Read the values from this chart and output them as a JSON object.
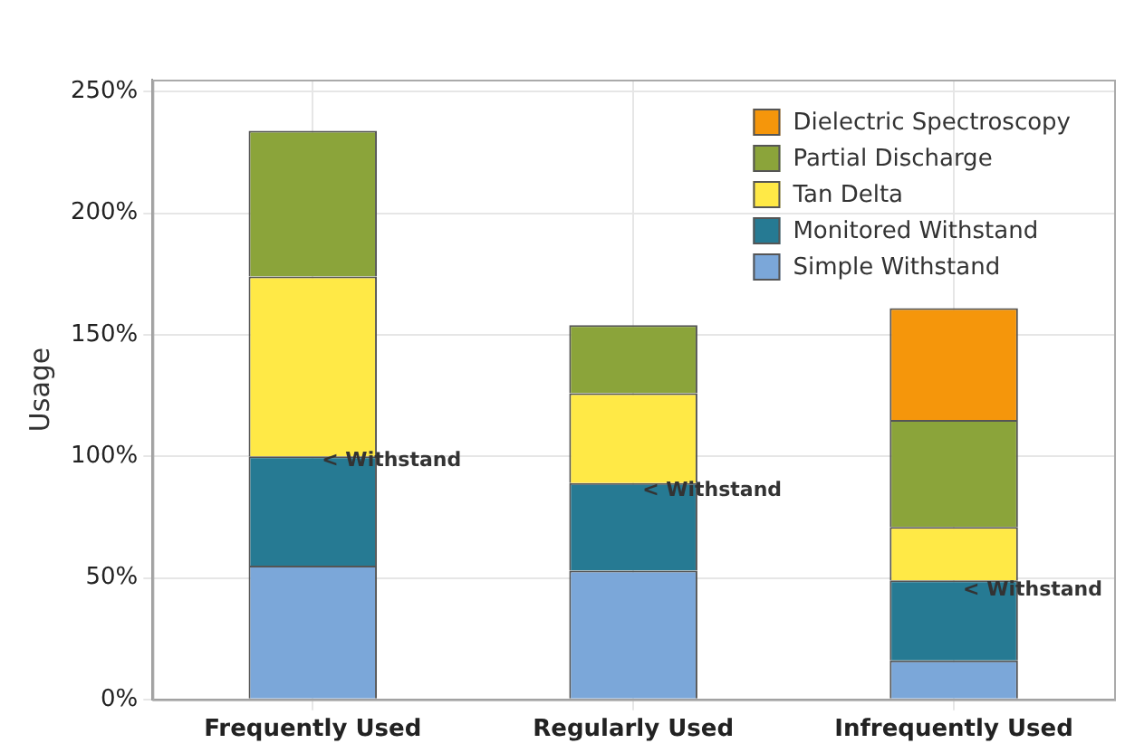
{
  "chart_data": {
    "type": "bar",
    "stacked": true,
    "ylabel": "Usage",
    "categories": [
      "Frequently Used",
      "Regularly Used",
      "Infrequently Used"
    ],
    "series": [
      {
        "name": "Simple Withstand",
        "color": "#7ba7d9",
        "values": [
          55,
          53,
          16
        ]
      },
      {
        "name": "Monitored Withstand",
        "color": "#267a93",
        "values": [
          45,
          36,
          33
        ]
      },
      {
        "name": "Tan Delta",
        "color": "#ffe946",
        "values": [
          74,
          37,
          22
        ]
      },
      {
        "name": "Partial Discharge",
        "color": "#8ba43a",
        "values": [
          60,
          28,
          44
        ]
      },
      {
        "name": "Dielectric Spectroscopy",
        "color": "#f5960b",
        "values": [
          0,
          0,
          46
        ]
      }
    ],
    "ylim": [
      0,
      255
    ],
    "yticks": [
      {
        "value": 0,
        "label": "0%"
      },
      {
        "value": 50,
        "label": "50%"
      },
      {
        "value": 100,
        "label": "100%"
      },
      {
        "value": 150,
        "label": "150%"
      },
      {
        "value": 200,
        "label": "200%"
      },
      {
        "value": 250,
        "label": "250%"
      }
    ],
    "annotations": [
      {
        "text": "< Withstand",
        "x": "Frequently Used",
        "y": 98
      },
      {
        "text": "< Withstand",
        "x": "Regularly Used",
        "y": 86
      },
      {
        "text": "< Withstand",
        "x": "Infrequently Used",
        "y": 45
      }
    ],
    "grid": true,
    "legend": "top right"
  }
}
